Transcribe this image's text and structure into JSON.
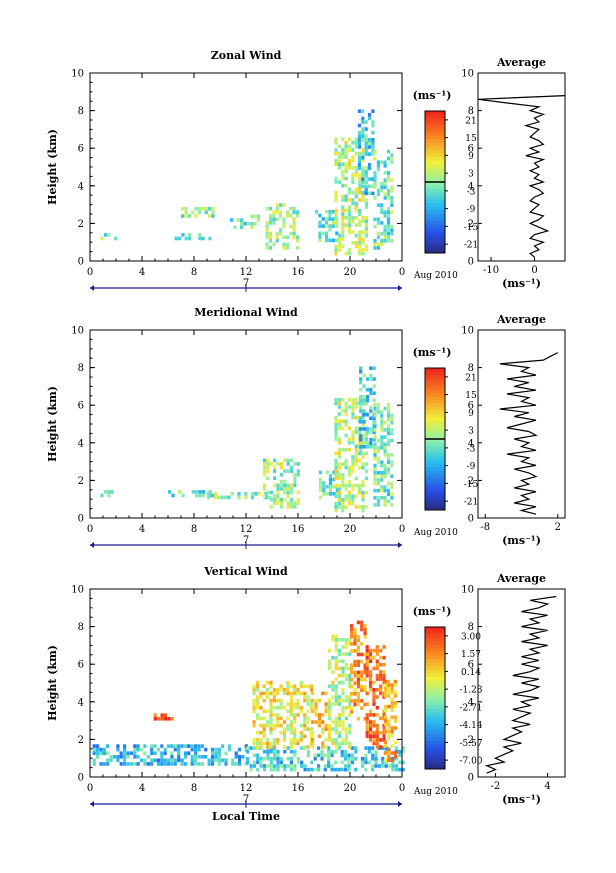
{
  "figure": {
    "xlabel": "Local Time",
    "date_label": "Aug 2010",
    "day_label": "7",
    "units_label": "(ms⁻¹)"
  },
  "chart_data": [
    {
      "type": "heatmap",
      "title": "Zonal Wind",
      "xlabel": "",
      "ylabel": "Height (km)",
      "xlim": [
        0,
        24
      ],
      "ylim": [
        0,
        10
      ],
      "xticks": [
        "0",
        "4",
        "8",
        "12",
        "16",
        "20",
        "0"
      ],
      "yticks": [
        "0",
        "2",
        "4",
        "6",
        "8",
        "10"
      ],
      "colorbar": {
        "ticks": [
          "21",
          "15",
          "9",
          "3",
          "-3",
          "-9",
          "-15",
          "-21"
        ],
        "min": -24,
        "max": 24,
        "zero_line": true
      },
      "data_regions": [
        {
          "x": [
            0.8,
            2.1
          ],
          "y": [
            1.1,
            1.4
          ],
          "value": -1
        },
        {
          "x": [
            6.5,
            9.5
          ],
          "y": [
            1.1,
            1.4
          ],
          "value": -2
        },
        {
          "x": [
            7.0,
            9.8
          ],
          "y": [
            2.3,
            2.7
          ],
          "value": 1
        },
        {
          "x": [
            10.5,
            13.0
          ],
          "y": [
            1.7,
            2.4
          ],
          "value": -1
        },
        {
          "x": [
            13.5,
            16.0
          ],
          "y": [
            0.6,
            3.0
          ],
          "value": 2
        },
        {
          "x": [
            17.3,
            19.0
          ],
          "y": [
            1.0,
            2.6
          ],
          "value": -2
        },
        {
          "x": [
            18.8,
            21.2
          ],
          "y": [
            0.3,
            6.4
          ],
          "value": 3
        },
        {
          "x": [
            20.6,
            21.8
          ],
          "y": [
            3.5,
            8.0
          ],
          "value": -6
        },
        {
          "x": [
            21.8,
            23.2
          ],
          "y": [
            0.6,
            5.8
          ],
          "value": -1
        }
      ],
      "profile": {
        "title": "Average",
        "xlim": [
          -13,
          7
        ],
        "xticks": [
          "-10",
          "0"
        ],
        "xticks_values": [
          -10,
          0
        ],
        "xlabel": "(ms⁻¹)",
        "heights": [
          0.2,
          0.4,
          0.6,
          0.8,
          1.0,
          1.2,
          1.4,
          1.6,
          1.8,
          2.0,
          2.2,
          2.4,
          2.6,
          2.8,
          3.0,
          3.2,
          3.4,
          3.6,
          3.8,
          4.0,
          4.2,
          4.4,
          4.6,
          4.8,
          5.0,
          5.2,
          5.4,
          5.6,
          5.8,
          6.0,
          6.2,
          6.4,
          6.6,
          6.8,
          7.0,
          7.2,
          7.4,
          7.6,
          7.8,
          8.0,
          8.2,
          8.4,
          8.6,
          8.8
        ],
        "values": [
          0,
          -1,
          1,
          0,
          2,
          -1,
          0,
          3,
          1,
          -1,
          1,
          2,
          -1,
          0,
          1,
          -1,
          0,
          2,
          1,
          -1,
          2,
          0,
          1,
          -1,
          1,
          0,
          2,
          -2,
          1,
          -1,
          2,
          1,
          -1,
          0,
          1,
          -2,
          1,
          0,
          2,
          -1,
          1,
          -6,
          -13,
          7
        ]
      }
    },
    {
      "type": "heatmap",
      "title": "Meridional Wind",
      "xlabel": "",
      "ylabel": "Height (km)",
      "xlim": [
        0,
        24
      ],
      "ylim": [
        0,
        10
      ],
      "xticks": [
        "0",
        "4",
        "8",
        "12",
        "16",
        "20",
        "0"
      ],
      "yticks": [
        "0",
        "2",
        "4",
        "6",
        "8",
        "10"
      ],
      "colorbar": {
        "ticks": [
          "21",
          "15",
          "9",
          "3",
          "-3",
          "-9",
          "-15",
          "-21"
        ],
        "min": -24,
        "max": 24,
        "zero_line": true
      },
      "data_regions": [
        {
          "x": [
            0.8,
            2.1
          ],
          "y": [
            1.1,
            1.4
          ],
          "value": -1
        },
        {
          "x": [
            6.0,
            9.6
          ],
          "y": [
            1.1,
            1.4
          ],
          "value": -2
        },
        {
          "x": [
            9.0,
            14.0
          ],
          "y": [
            1.0,
            1.2
          ],
          "value": 0
        },
        {
          "x": [
            13.3,
            16.0
          ],
          "y": [
            0.5,
            3.0
          ],
          "value": 2
        },
        {
          "x": [
            17.6,
            19.0
          ],
          "y": [
            1.0,
            2.4
          ],
          "value": -2
        },
        {
          "x": [
            18.8,
            21.2
          ],
          "y": [
            0.3,
            6.2
          ],
          "value": 3
        },
        {
          "x": [
            20.7,
            21.9
          ],
          "y": [
            3.5,
            8.0
          ],
          "value": -5
        },
        {
          "x": [
            21.8,
            23.2
          ],
          "y": [
            0.6,
            6.0
          ],
          "value": -1
        }
      ],
      "profile": {
        "title": "Average",
        "xlim": [
          -9,
          3
        ],
        "xticks": [
          "-8",
          "2"
        ],
        "xticks_values": [
          -8,
          2
        ],
        "xlabel": "(ms⁻¹)",
        "heights": [
          0.2,
          0.4,
          0.6,
          0.8,
          1.0,
          1.2,
          1.4,
          1.6,
          1.8,
          2.0,
          2.2,
          2.4,
          2.6,
          2.8,
          3.0,
          3.2,
          3.4,
          3.6,
          3.8,
          4.0,
          4.2,
          4.4,
          4.6,
          4.8,
          5.0,
          5.2,
          5.4,
          5.6,
          5.8,
          6.0,
          6.2,
          6.4,
          6.6,
          6.8,
          7.0,
          7.2,
          7.4,
          7.6,
          7.8,
          8.0,
          8.2,
          8.4,
          8.6,
          8.8
        ],
        "values": [
          -1,
          -3,
          -1,
          -4,
          -2,
          -3,
          -1,
          -4,
          -2,
          -3,
          -1,
          -2,
          -4,
          -1,
          -3,
          -2,
          -5,
          -1,
          -3,
          -2,
          -4,
          -1,
          -2,
          -5,
          -3,
          -1,
          -4,
          -2,
          -6,
          -1,
          -3,
          -2,
          -5,
          -1,
          -4,
          -2,
          -5,
          -1,
          -3,
          -2,
          -6,
          0,
          1,
          2
        ]
      }
    },
    {
      "type": "heatmap",
      "title": "Vertical Wind",
      "xlabel": "Local Time",
      "ylabel": "Height (km)",
      "xlim": [
        0,
        24
      ],
      "ylim": [
        0,
        10
      ],
      "xticks": [
        "0",
        "4",
        "8",
        "12",
        "16",
        "20",
        "0"
      ],
      "yticks": [
        "0",
        "2",
        "4",
        "6",
        "8",
        "10"
      ],
      "colorbar": {
        "ticks": [
          "3.00",
          "1.57",
          "0.14",
          "-1.28",
          "-2.71",
          "-4.14",
          "-5.57",
          "-7.00"
        ],
        "min": -7.7,
        "max": 3.7,
        "zero_line": false
      },
      "data_regions": [
        {
          "x": [
            0.2,
            12.0
          ],
          "y": [
            0.6,
            1.6
          ],
          "value": -3.8
        },
        {
          "x": [
            12.0,
            24.0
          ],
          "y": [
            0.3,
            1.6
          ],
          "value": -3.3
        },
        {
          "x": [
            12.5,
            17.0
          ],
          "y": [
            1.5,
            5.0
          ],
          "value": -0.3
        },
        {
          "x": [
            17.0,
            18.3
          ],
          "y": [
            1.5,
            4.4
          ],
          "value": 0.4
        },
        {
          "x": [
            18.3,
            20.0
          ],
          "y": [
            1.5,
            7.5
          ],
          "value": -1.2
        },
        {
          "x": [
            20.0,
            21.2
          ],
          "y": [
            3.0,
            8.2
          ],
          "value": 1.6
        },
        {
          "x": [
            21.2,
            22.6
          ],
          "y": [
            1.5,
            7.0
          ],
          "value": 2.2
        },
        {
          "x": [
            22.6,
            23.4
          ],
          "y": [
            0.8,
            5.0
          ],
          "value": 0.9
        },
        {
          "x": [
            4.9,
            6.3
          ],
          "y": [
            3.0,
            3.3
          ],
          "value": 3.0
        }
      ],
      "profile": {
        "title": "Average",
        "xlim": [
          -4,
          6
        ],
        "xticks": [
          "-2",
          "4"
        ],
        "xticks_values": [
          -2,
          4
        ],
        "xlabel": "(ms⁻¹)",
        "heights": [
          0.2,
          0.4,
          0.6,
          0.8,
          1.0,
          1.2,
          1.4,
          1.6,
          1.8,
          2.0,
          2.2,
          2.4,
          2.6,
          2.8,
          3.0,
          3.2,
          3.4,
          3.6,
          3.8,
          4.0,
          4.2,
          4.4,
          4.6,
          4.8,
          5.0,
          5.2,
          5.4,
          5.6,
          5.8,
          6.0,
          6.2,
          6.4,
          6.6,
          6.8,
          7.0,
          7.2,
          7.4,
          7.6,
          7.8,
          8.0,
          8.2,
          8.4,
          8.6,
          8.8,
          9.0,
          9.2,
          9.4,
          9.6
        ],
        "values": [
          -3,
          -2,
          -3,
          -1,
          -2,
          -1,
          0,
          -1,
          1,
          -1,
          0,
          1,
          0,
          2,
          0,
          1,
          2,
          0,
          2,
          1,
          3,
          0,
          2,
          3,
          1,
          3,
          0,
          2,
          3,
          1,
          3,
          1,
          3,
          2,
          4,
          1,
          3,
          2,
          4,
          1,
          3,
          2,
          4,
          1,
          3,
          4,
          2,
          5
        ]
      }
    }
  ]
}
